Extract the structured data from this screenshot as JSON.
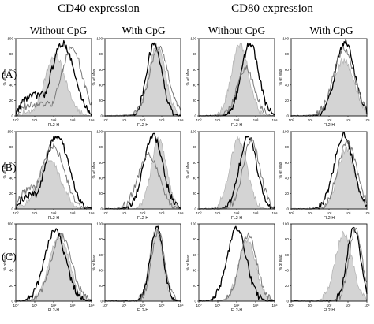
{
  "group_headers": [
    "CD40 expression",
    "CD80 expression"
  ],
  "column_headers": [
    "Without CpG",
    "With CpG",
    "Without CpG",
    "With CpG"
  ],
  "row_labels": [
    "(A)",
    "(B)",
    "(C)"
  ],
  "axes": {
    "x_label": "FL2-H",
    "y_label": "% of Max",
    "x_ticks": [
      "10⁰",
      "10¹",
      "10²",
      "10³",
      "10⁴"
    ],
    "y_ticks": [
      "0",
      "20",
      "40",
      "60",
      "80",
      "100"
    ]
  },
  "colors": {
    "control_fill": "#d4d4d4",
    "control_line": "#b0b0b0",
    "dark_line": "#000000",
    "gray_line": "#7a7a7a"
  },
  "chart_data": {
    "type": "area",
    "x_scale": "log",
    "xlim": [
      1,
      10000
    ],
    "ylim": [
      0,
      100
    ],
    "grid": false,
    "panels": [
      {
        "row": "(A)",
        "column": "Without CpG",
        "group": "CD40 expression",
        "series": [
          {
            "style": "filled",
            "center": 120,
            "width": 0.55,
            "peak": 78,
            "baseline": 5
          },
          {
            "style": "dark",
            "center": 300,
            "width": 0.6,
            "peak": 94,
            "baseline": 28
          },
          {
            "style": "gray",
            "center": 900,
            "width": 0.55,
            "peak": 88,
            "baseline": 15
          }
        ]
      },
      {
        "row": "(A)",
        "column": "With CpG",
        "group": "CD40 expression",
        "series": [
          {
            "style": "filled",
            "center": 550,
            "width": 0.45,
            "peak": 90,
            "baseline": 0
          },
          {
            "style": "dark",
            "center": 400,
            "width": 0.4,
            "peak": 94,
            "baseline": 0
          },
          {
            "style": "gray",
            "center": 700,
            "width": 0.5,
            "peak": 88,
            "baseline": 0
          }
        ]
      },
      {
        "row": "(A)",
        "column": "Without CpG",
        "group": "CD80 expression",
        "series": [
          {
            "style": "filled",
            "center": 150,
            "width": 0.45,
            "peak": 92,
            "baseline": 0
          },
          {
            "style": "dark",
            "center": 500,
            "width": 0.45,
            "peak": 94,
            "baseline": 0
          },
          {
            "style": "gray",
            "center": 300,
            "width": 0.45,
            "peak": 62,
            "baseline": 0
          }
        ]
      },
      {
        "row": "(A)",
        "column": "With CpG",
        "group": "CD80 expression",
        "series": [
          {
            "style": "filled",
            "center": 600,
            "width": 0.55,
            "peak": 72,
            "baseline": 0
          },
          {
            "style": "dark",
            "center": 700,
            "width": 0.5,
            "peak": 96,
            "baseline": 0
          },
          {
            "style": "gray",
            "center": 600,
            "width": 0.55,
            "peak": 86,
            "baseline": 0
          }
        ]
      },
      {
        "row": "(B)",
        "column": "Without CpG",
        "group": "CD40 expression",
        "series": [
          {
            "style": "filled",
            "center": 60,
            "width": 0.6,
            "peak": 62,
            "baseline": 8
          },
          {
            "style": "dark",
            "center": 150,
            "width": 0.6,
            "peak": 95,
            "baseline": 20
          },
          {
            "style": "gray",
            "center": 90,
            "width": 0.6,
            "peak": 82,
            "baseline": 30
          }
        ]
      },
      {
        "row": "(B)",
        "column": "With CpG",
        "group": "CD40 expression",
        "series": [
          {
            "style": "filled",
            "center": 700,
            "width": 0.4,
            "peak": 90,
            "baseline": 0
          },
          {
            "style": "dark",
            "center": 350,
            "width": 0.5,
            "peak": 95,
            "baseline": 0
          },
          {
            "style": "gray",
            "center": 200,
            "width": 0.55,
            "peak": 70,
            "baseline": 0
          }
        ]
      },
      {
        "row": "(B)",
        "column": "Without CpG",
        "group": "CD80 expression",
        "series": [
          {
            "style": "filled",
            "center": 120,
            "width": 0.45,
            "peak": 90,
            "baseline": 0
          },
          {
            "style": "dark",
            "center": 400,
            "width": 0.45,
            "peak": 94,
            "baseline": 0
          },
          {
            "style": "gray",
            "center": 600,
            "width": 0.45,
            "peak": 88,
            "baseline": 0
          }
        ]
      },
      {
        "row": "(B)",
        "column": "With CpG",
        "group": "CD80 expression",
        "series": [
          {
            "style": "filled",
            "center": 800,
            "width": 0.45,
            "peak": 78,
            "baseline": 0
          },
          {
            "style": "dark",
            "center": 600,
            "width": 0.5,
            "peak": 96,
            "baseline": 0
          },
          {
            "style": "gray",
            "center": 900,
            "width": 0.5,
            "peak": 86,
            "baseline": 0
          }
        ]
      },
      {
        "row": "(C)",
        "column": "Without CpG",
        "group": "CD40 expression",
        "series": [
          {
            "style": "filled",
            "center": 200,
            "width": 0.55,
            "peak": 82,
            "baseline": 0
          },
          {
            "style": "dark",
            "center": 120,
            "width": 0.55,
            "peak": 92,
            "baseline": 0
          },
          {
            "style": "gray",
            "center": 250,
            "width": 0.55,
            "peak": 84,
            "baseline": 0
          }
        ]
      },
      {
        "row": "(C)",
        "column": "With CpG",
        "group": "CD40 expression",
        "series": [
          {
            "style": "filled",
            "center": 500,
            "width": 0.35,
            "peak": 92,
            "baseline": 0
          },
          {
            "style": "dark",
            "center": 550,
            "width": 0.35,
            "peak": 94,
            "baseline": 0
          },
          {
            "style": "gray",
            "center": 650,
            "width": 0.35,
            "peak": 90,
            "baseline": 0
          }
        ]
      },
      {
        "row": "(C)",
        "column": "Without CpG",
        "group": "CD80 expression",
        "series": [
          {
            "style": "filled",
            "center": 350,
            "width": 0.45,
            "peak": 80,
            "baseline": 0
          },
          {
            "style": "dark",
            "center": 100,
            "width": 0.5,
            "peak": 94,
            "baseline": 0
          },
          {
            "style": "gray",
            "center": 400,
            "width": 0.45,
            "peak": 86,
            "baseline": 0
          }
        ]
      },
      {
        "row": "(C)",
        "column": "With CpG",
        "group": "CD80 expression",
        "series": [
          {
            "style": "filled",
            "center": 600,
            "width": 0.45,
            "peak": 88,
            "baseline": 0
          },
          {
            "style": "dark",
            "center": 2000,
            "width": 0.35,
            "peak": 96,
            "baseline": 0
          },
          {
            "style": "gray",
            "center": 2500,
            "width": 0.35,
            "peak": 92,
            "baseline": 0
          }
        ]
      }
    ]
  }
}
